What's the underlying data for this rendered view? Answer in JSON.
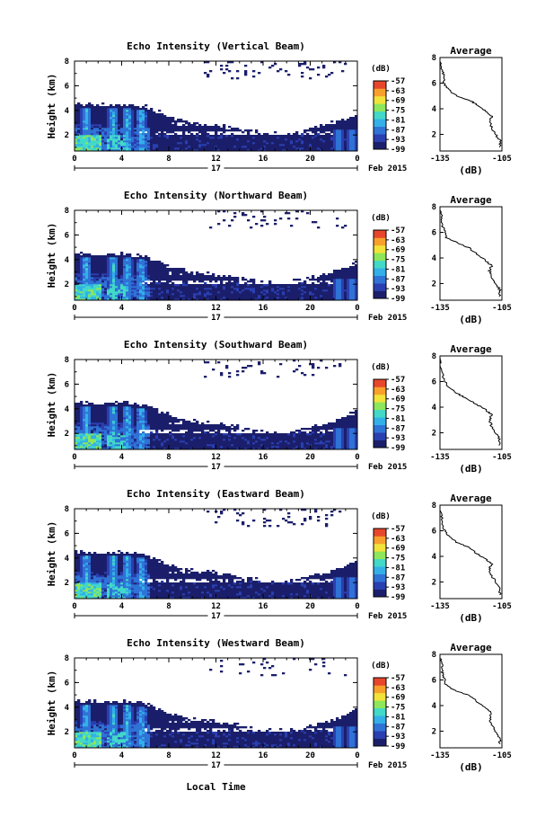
{
  "chart_data": {
    "type": "heatmap",
    "panels": [
      {
        "title": "Echo Intensity (Vertical Beam)",
        "top_fill": 0.6,
        "avg_profile": [
          [
            -106,
            1.0
          ],
          [
            -106,
            1.5
          ],
          [
            -108,
            2.0
          ],
          [
            -110,
            2.5
          ],
          [
            -111,
            3.0
          ],
          [
            -110,
            3.4
          ],
          [
            -113,
            3.8
          ],
          [
            -116,
            4.2
          ],
          [
            -120,
            4.6
          ],
          [
            -127,
            5.0
          ],
          [
            -131,
            5.5
          ],
          [
            -133,
            6.0
          ],
          [
            -133,
            6.5
          ],
          [
            -134,
            7.0
          ],
          [
            -135,
            7.8
          ]
        ]
      },
      {
        "title": "Echo Intensity (Northward Beam)",
        "top_fill": 0.35,
        "avg_profile": [
          [
            -106,
            1.0
          ],
          [
            -106,
            1.5
          ],
          [
            -108,
            2.0
          ],
          [
            -110,
            2.5
          ],
          [
            -111,
            3.0
          ],
          [
            -110,
            3.4
          ],
          [
            -113,
            3.8
          ],
          [
            -117,
            4.3
          ],
          [
            -121,
            4.8
          ],
          [
            -127,
            5.2
          ],
          [
            -132,
            5.6
          ],
          [
            -133,
            6.2
          ],
          [
            -134,
            6.6
          ],
          [
            -134,
            7.2
          ],
          [
            -135,
            7.8
          ]
        ]
      },
      {
        "title": "Echo Intensity (Southward Beam)",
        "top_fill": 0.4,
        "avg_profile": [
          [
            -106,
            1.0
          ],
          [
            -106,
            1.5
          ],
          [
            -108,
            2.0
          ],
          [
            -110,
            2.5
          ],
          [
            -111,
            3.0
          ],
          [
            -110,
            3.4
          ],
          [
            -113,
            3.8
          ],
          [
            -117,
            4.2
          ],
          [
            -121,
            4.6
          ],
          [
            -126,
            5.0
          ],
          [
            -131,
            5.6
          ],
          [
            -133,
            6.2
          ],
          [
            -134,
            6.8
          ],
          [
            -135,
            7.4
          ],
          [
            -135,
            7.8
          ]
        ]
      },
      {
        "title": "Echo Intensity (Eastward Beam)",
        "top_fill": 0.45,
        "avg_profile": [
          [
            -106,
            1.0
          ],
          [
            -106,
            1.4
          ],
          [
            -108,
            2.0
          ],
          [
            -110,
            2.5
          ],
          [
            -111,
            3.0
          ],
          [
            -110,
            3.4
          ],
          [
            -113,
            3.8
          ],
          [
            -117,
            4.2
          ],
          [
            -121,
            4.7
          ],
          [
            -127,
            5.1
          ],
          [
            -131,
            5.6
          ],
          [
            -133,
            6.1
          ],
          [
            -134,
            6.6
          ],
          [
            -134,
            7.2
          ],
          [
            -135,
            7.8
          ]
        ]
      },
      {
        "title": "Echo Intensity (Westward Beam)",
        "top_fill": 0.38,
        "avg_profile": [
          [
            -106,
            1.0
          ],
          [
            -106,
            1.5
          ],
          [
            -108,
            2.0
          ],
          [
            -110,
            2.5
          ],
          [
            -111,
            3.0
          ],
          [
            -110,
            3.4
          ],
          [
            -113,
            3.8
          ],
          [
            -117,
            4.3
          ],
          [
            -121,
            4.8
          ],
          [
            -128,
            5.2
          ],
          [
            -132,
            5.6
          ],
          [
            -133,
            6.2
          ],
          [
            -134,
            6.6
          ],
          [
            -134,
            7.2
          ],
          [
            -135,
            7.8
          ]
        ]
      }
    ],
    "x_axis": {
      "tick_labels": [
        "0",
        "4",
        "8",
        "12",
        "16",
        "20",
        "0"
      ],
      "hour_range": [
        0,
        24
      ],
      "day_label": "17",
      "date_label": "Feb 2015",
      "label": "Local Time"
    },
    "y_axis": {
      "label": "Height (km)",
      "ylim": [
        0.7,
        8
      ],
      "ticks": [
        2,
        4,
        6,
        8
      ],
      "tick_labels": [
        "2",
        "4",
        "6",
        "8"
      ]
    },
    "colorbar": {
      "unit": "(dB)",
      "ticks": [
        "-57",
        "-63",
        "-69",
        "-75",
        "-81",
        "-87",
        "-93",
        "-99"
      ],
      "range": [
        -99,
        -57
      ]
    },
    "average": {
      "title": "Average",
      "xlabel": "(dB)",
      "xlim": [
        -135,
        -105
      ],
      "x_ticks": [
        "-135",
        "-105"
      ],
      "y_ticks": [
        "2",
        "4",
        "6",
        "8"
      ]
    },
    "echo_boundary_km": [
      [
        0,
        4.5
      ],
      [
        2,
        4.4
      ],
      [
        4,
        4.5
      ],
      [
        6,
        4.3
      ],
      [
        8,
        3.5
      ],
      [
        10,
        3.0
      ],
      [
        12,
        2.8
      ],
      [
        14,
        2.5
      ],
      [
        16,
        2.2
      ],
      [
        18,
        2.1
      ],
      [
        20,
        2.5
      ],
      [
        22,
        3.0
      ],
      [
        24,
        3.8
      ]
    ],
    "intense_columns_hour": [
      1.0,
      3.3,
      4.5,
      5.7,
      22.5,
      23.5
    ],
    "colors": [
      "#1b1f6b",
      "#2a3fb0",
      "#2f73d6",
      "#33b0e8",
      "#42d9c7",
      "#8ee65a",
      "#f1e33a",
      "#f7a12c",
      "#e8462b"
    ]
  }
}
